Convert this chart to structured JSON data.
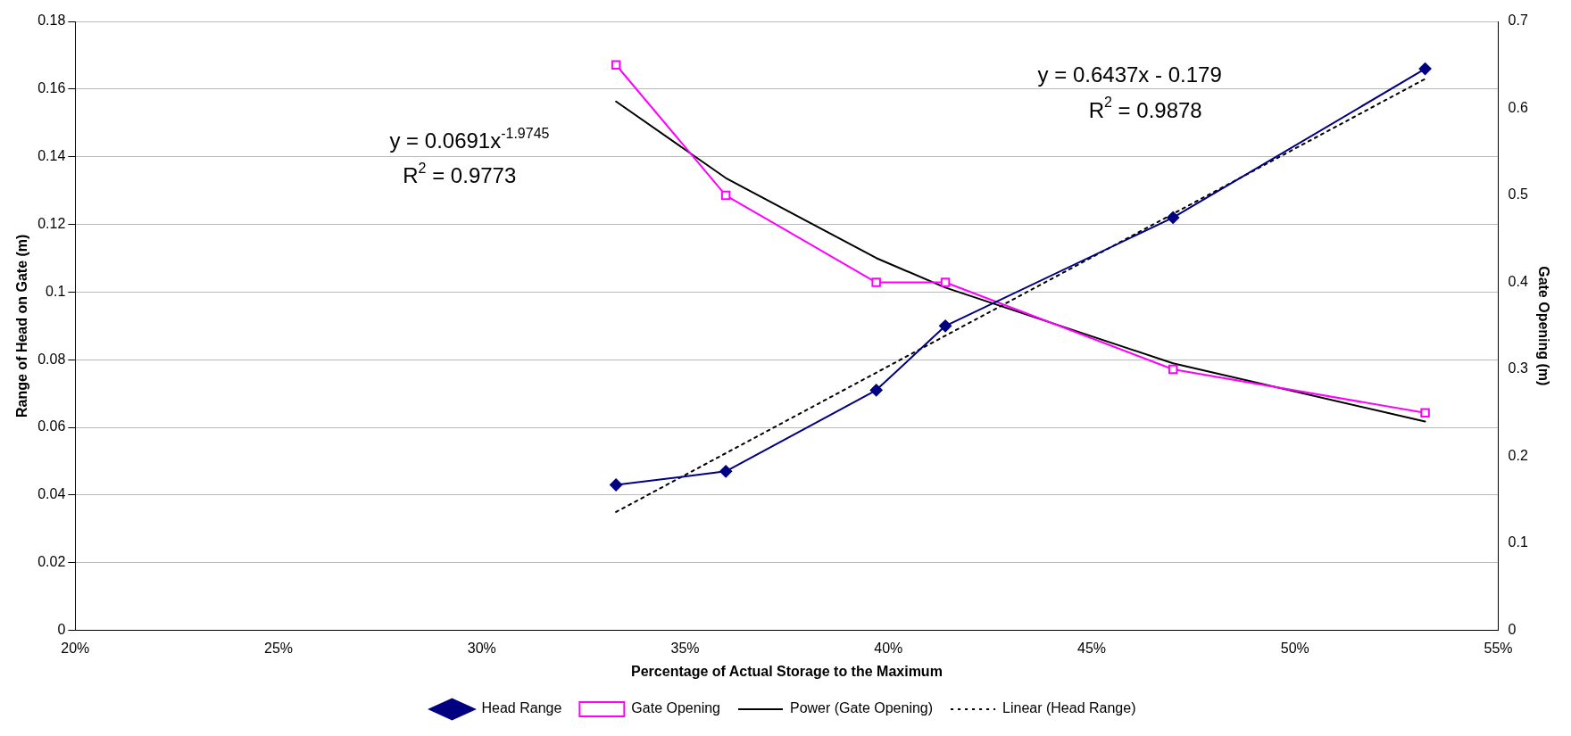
{
  "chart_data": {
    "type": "line",
    "xlabel": "Percentage of Actual Storage to the Maximum",
    "ylabel": "Range of Head on Gate (m)",
    "y2label": "Gate Opening (m)",
    "xlim": [
      0.2,
      0.55
    ],
    "xticks": [
      {
        "value": 0.2,
        "label": "20%"
      },
      {
        "value": 0.25,
        "label": "25%"
      },
      {
        "value": 0.3,
        "label": "30%"
      },
      {
        "value": 0.35,
        "label": "35%"
      },
      {
        "value": 0.4,
        "label": "40%"
      },
      {
        "value": 0.45,
        "label": "45%"
      },
      {
        "value": 0.5,
        "label": "50%"
      },
      {
        "value": 0.55,
        "label": "55%"
      }
    ],
    "ylim": [
      0,
      0.18
    ],
    "yticks": [
      0,
      0.02,
      0.04,
      0.06,
      0.08,
      0.1,
      0.12,
      0.14,
      0.16,
      0.18
    ],
    "y2lim": [
      0,
      0.7
    ],
    "y2ticks": [
      0,
      0.1,
      0.2,
      0.3,
      0.4,
      0.5,
      0.6,
      0.7
    ],
    "grid": "y",
    "legend": "bottom",
    "series": [
      {
        "name": "Head Range",
        "color": "#000080",
        "marker": "diamond",
        "line_style": "solid",
        "x": [
          0.333,
          0.36,
          0.397,
          0.414,
          0.47,
          0.532
        ],
        "values": [
          0.043,
          0.047,
          0.071,
          0.09,
          0.122,
          0.166
        ]
      },
      {
        "name": "Gate Opening",
        "axis": "y2",
        "color": "#ff00ff",
        "marker": "square",
        "line_style": "solid",
        "x": [
          0.333,
          0.36,
          0.397,
          0.414,
          0.47,
          0.532
        ],
        "values": [
          0.65,
          0.5,
          0.4,
          0.4,
          0.3,
          0.25
        ]
      },
      {
        "name": "Power (Gate Opening)",
        "axis": "y2",
        "color": "#000000",
        "marker": "none",
        "line_style": "solid",
        "x": [
          0.333,
          0.36,
          0.397,
          0.414,
          0.47,
          0.532
        ],
        "values": [
          0.608,
          0.52,
          0.428,
          0.394,
          0.307,
          0.24
        ]
      },
      {
        "name": "Linear (Head Range)",
        "color": "#000000",
        "marker": "none",
        "line_style": "dashed",
        "x": [
          0.333,
          0.532
        ],
        "values": [
          0.035,
          0.163
        ]
      }
    ],
    "annotations": [
      "y = 0.0691x$^{-1.9745}$",
      "R$^{2}$ = 0.9773",
      "y = 0.6437x - 0.179",
      "R$^{2}$ = 0.9878"
    ]
  }
}
